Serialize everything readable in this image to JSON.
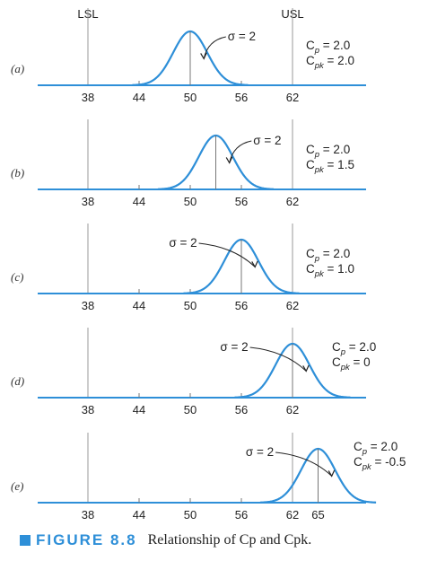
{
  "chart_data": {
    "type": "line",
    "lsl": 38,
    "usl": 62,
    "lsl_label": "LSL",
    "usl_label": "USL",
    "x_ticks": [
      38,
      44,
      50,
      56,
      62
    ],
    "x_range": [
      30,
      72
    ],
    "sigma": 2,
    "panels": [
      {
        "label": "(a)",
        "mean": 50,
        "sigma_label": "σ = 2",
        "cp": "Cp = 2.0",
        "cpk": "Cpk = 2.0",
        "extra_ticks": []
      },
      {
        "label": "(b)",
        "mean": 53,
        "sigma_label": "σ = 2",
        "cp": "Cp = 2.0",
        "cpk": "Cpk = 1.5",
        "extra_ticks": []
      },
      {
        "label": "(c)",
        "mean": 56,
        "sigma_label": "σ = 2",
        "cp": "Cp = 2.0",
        "cpk": "Cpk = 1.0",
        "extra_ticks": []
      },
      {
        "label": "(d)",
        "mean": 62,
        "sigma_label": "σ = 2",
        "cp": "Cp = 2.0",
        "cpk": "Cpk = 0",
        "extra_ticks": []
      },
      {
        "label": "(e)",
        "mean": 65,
        "sigma_label": "σ = 2",
        "cp": "Cp = 2.0",
        "cpk": "Cpk = -0.5",
        "extra_ticks": [
          65
        ]
      }
    ]
  },
  "caption": {
    "figure_label": "FIGURE 8.8",
    "text": "Relationship of Cp and Cpk."
  },
  "colors": {
    "curve": "#2e8fd8",
    "axis": "#2e8fd8",
    "spec_line": "#999999",
    "accent": "#2e8fd8"
  }
}
